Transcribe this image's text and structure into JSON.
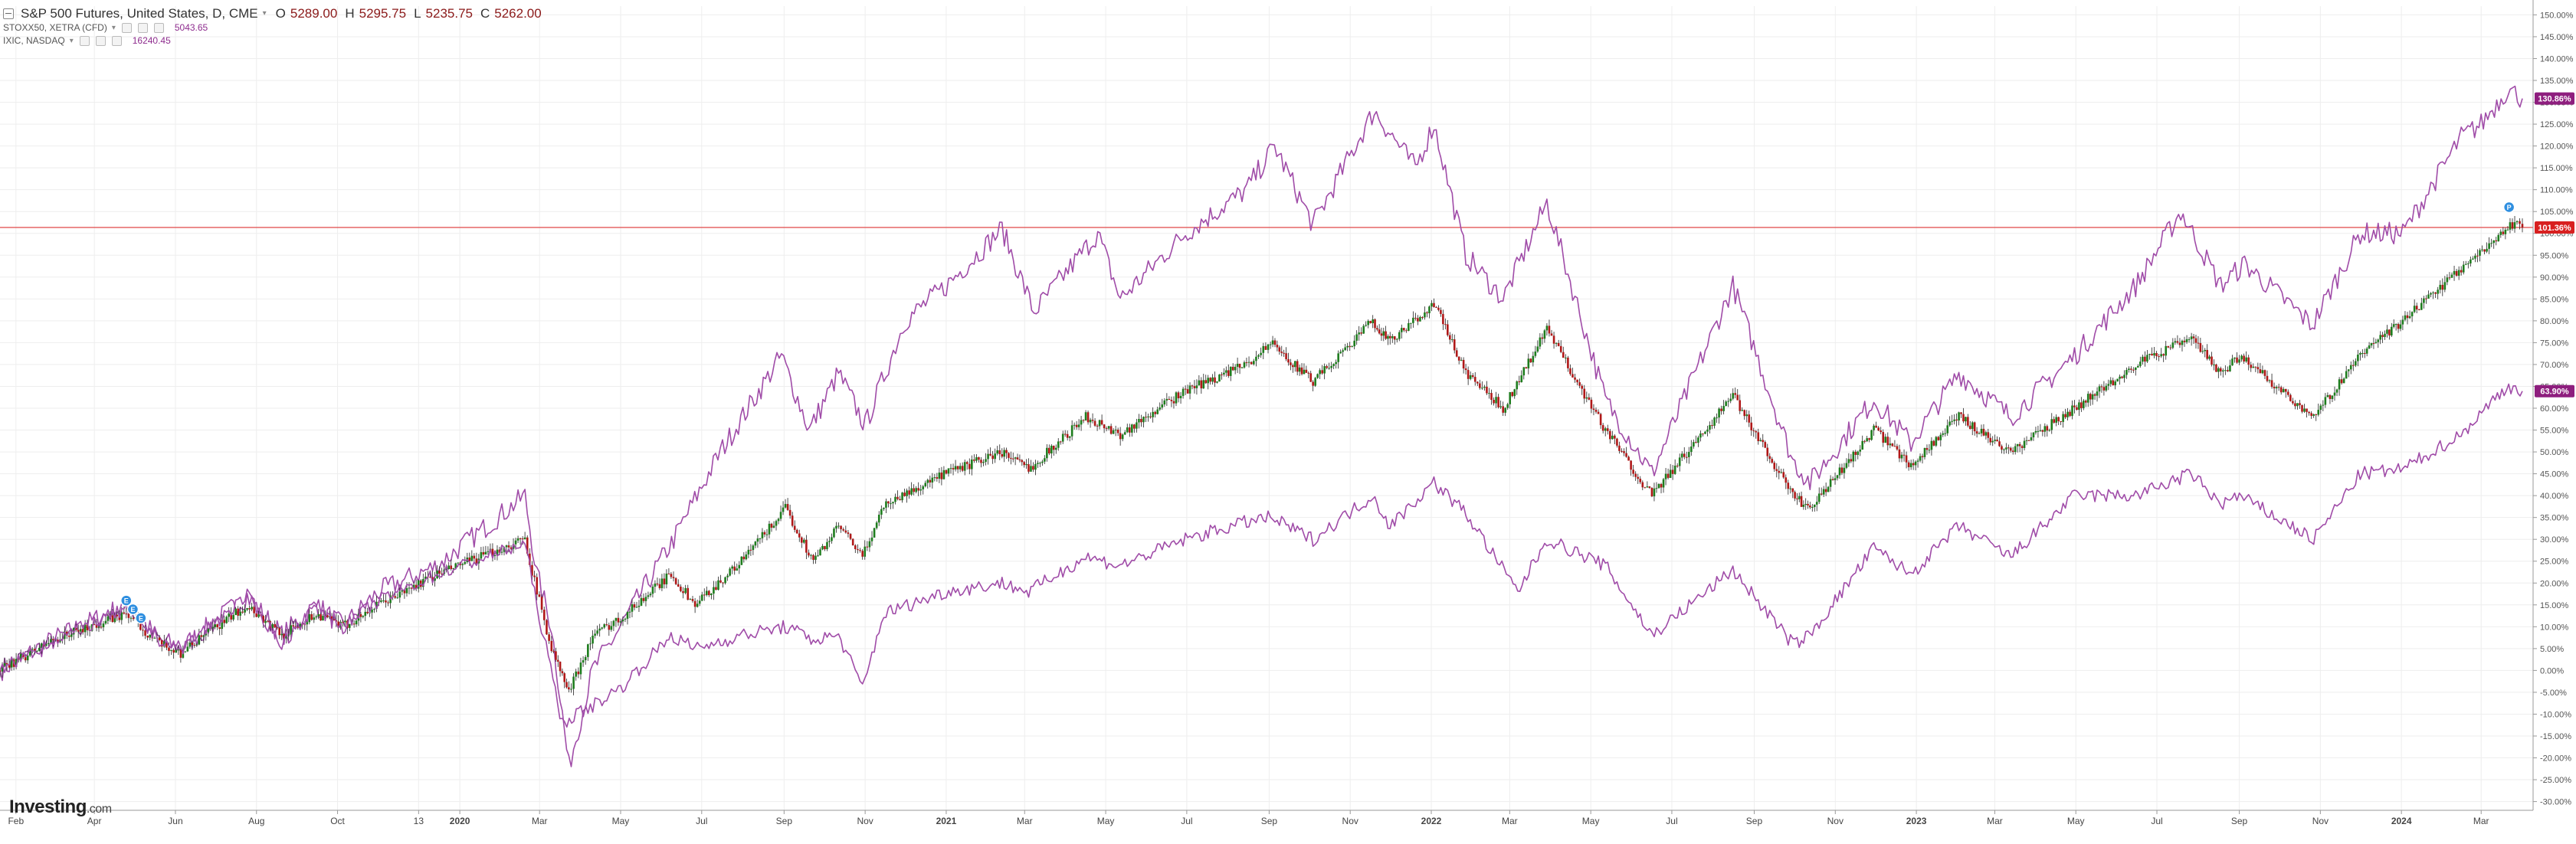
{
  "legend": {
    "main": {
      "title": "S&P 500 Futures, United States, D, CME",
      "open_label": "O",
      "open": "5289.00",
      "high_label": "H",
      "high": "5295.75",
      "low_label": "L",
      "low": "5235.75",
      "close_label": "C",
      "close": "5262.00"
    },
    "comparisons": [
      {
        "title": "STOXX50, XETRA (CFD)",
        "value": "5043.65"
      },
      {
        "title": "IXIC, NASDAQ",
        "value": "16240.45"
      }
    ]
  },
  "logo": {
    "brand": "Investing",
    "suffix": ".com"
  },
  "colors": {
    "candle_up": "#1e7d1e",
    "candle_down": "#b01818",
    "nasdaq_line": "#a04ca8",
    "stoxx_line": "#a04ca8",
    "reference_line": "#e04848",
    "badge_purple": "#8e1e7e",
    "badge_red": "#d82020",
    "grid": "#eeeeee"
  },
  "chart_data": {
    "type": "line",
    "title": "",
    "xlabel": "",
    "ylabel": "",
    "ylim": [
      -32,
      152
    ],
    "y_unit": "%",
    "grid": true,
    "x_ticks": [
      {
        "label": "Feb",
        "date": "2019-02-01",
        "bold": false
      },
      {
        "label": "Apr",
        "date": "2019-04-01",
        "bold": false
      },
      {
        "label": "Jun",
        "date": "2019-06-01",
        "bold": false
      },
      {
        "label": "Aug",
        "date": "2019-08-01",
        "bold": false
      },
      {
        "label": "Oct",
        "date": "2019-10-01",
        "bold": false
      },
      {
        "label": "13",
        "date": "2019-12-01",
        "bold": false
      },
      {
        "label": "2020",
        "date": "2020-01-01",
        "bold": true
      },
      {
        "label": "Mar",
        "date": "2020-03-01",
        "bold": false
      },
      {
        "label": "May",
        "date": "2020-05-01",
        "bold": false
      },
      {
        "label": "Jul",
        "date": "2020-07-01",
        "bold": false
      },
      {
        "label": "Sep",
        "date": "2020-09-01",
        "bold": false
      },
      {
        "label": "Nov",
        "date": "2020-11-01",
        "bold": false
      },
      {
        "label": "2021",
        "date": "2021-01-01",
        "bold": true
      },
      {
        "label": "Mar",
        "date": "2021-03-01",
        "bold": false
      },
      {
        "label": "May",
        "date": "2021-05-01",
        "bold": false
      },
      {
        "label": "Jul",
        "date": "2021-07-01",
        "bold": false
      },
      {
        "label": "Sep",
        "date": "2021-09-01",
        "bold": false
      },
      {
        "label": "Nov",
        "date": "2021-11-01",
        "bold": false
      },
      {
        "label": "2022",
        "date": "2022-01-01",
        "bold": true
      },
      {
        "label": "Mar",
        "date": "2022-03-01",
        "bold": false
      },
      {
        "label": "May",
        "date": "2022-05-01",
        "bold": false
      },
      {
        "label": "Jul",
        "date": "2022-07-01",
        "bold": false
      },
      {
        "label": "Sep",
        "date": "2022-09-01",
        "bold": false
      },
      {
        "label": "Nov",
        "date": "2022-11-01",
        "bold": false
      },
      {
        "label": "2023",
        "date": "2023-01-01",
        "bold": true
      },
      {
        "label": "Mar",
        "date": "2023-03-01",
        "bold": false
      },
      {
        "label": "May",
        "date": "2023-05-01",
        "bold": false
      },
      {
        "label": "Jul",
        "date": "2023-07-01",
        "bold": false
      },
      {
        "label": "Sep",
        "date": "2023-09-01",
        "bold": false
      },
      {
        "label": "Nov",
        "date": "2023-11-01",
        "bold": false
      },
      {
        "label": "2024",
        "date": "2024-01-01",
        "bold": true
      },
      {
        "label": "Mar",
        "date": "2024-03-01",
        "bold": false
      }
    ],
    "y_ticks": [
      "150.00%",
      "145.00%",
      "140.00%",
      "135.00%",
      "130.00%",
      "125.00%",
      "120.00%",
      "115.00%",
      "110.00%",
      "105.00%",
      "100.00%",
      "95.00%",
      "90.00%",
      "85.00%",
      "80.00%",
      "75.00%",
      "70.00%",
      "65.00%",
      "60.00%",
      "55.00%",
      "50.00%",
      "45.00%",
      "40.00%",
      "35.00%",
      "30.00%",
      "25.00%",
      "20.00%",
      "15.00%",
      "10.00%",
      "5.00%",
      "0.00%",
      "-5.00%",
      "-10.00%",
      "-15.00%",
      "-20.00%",
      "-25.00%",
      "-30.00%"
    ],
    "reference_line": {
      "value": 101.36,
      "label": "101.36%"
    },
    "series": [
      {
        "name": "IXIC, NASDAQ",
        "style": "line",
        "last_label": "130.86%",
        "points": [
          [
            "2019-01-20",
            0
          ],
          [
            "2019-03-01",
            7
          ],
          [
            "2019-04-25",
            15
          ],
          [
            "2019-05-20",
            7
          ],
          [
            "2019-06-05",
            5
          ],
          [
            "2019-07-25",
            17
          ],
          [
            "2019-08-20",
            8
          ],
          [
            "2019-09-15",
            15
          ],
          [
            "2019-10-05",
            10
          ],
          [
            "2019-11-01",
            18
          ],
          [
            "2019-12-15",
            24
          ],
          [
            "2020-02-19",
            40
          ],
          [
            "2020-02-28",
            22
          ],
          [
            "2020-03-10",
            10
          ],
          [
            "2020-03-23",
            -22
          ],
          [
            "2020-04-10",
            0
          ],
          [
            "2020-05-01",
            10
          ],
          [
            "2020-06-10",
            30
          ],
          [
            "2020-07-15",
            50
          ],
          [
            "2020-08-30",
            72
          ],
          [
            "2020-09-20",
            55
          ],
          [
            "2020-10-12",
            68
          ],
          [
            "2020-11-01",
            56
          ],
          [
            "2020-12-01",
            80
          ],
          [
            "2021-01-01",
            88
          ],
          [
            "2021-02-12",
            101
          ],
          [
            "2021-03-08",
            82
          ],
          [
            "2021-04-25",
            100
          ],
          [
            "2021-05-12",
            85
          ],
          [
            "2021-06-30",
            100
          ],
          [
            "2021-08-15",
            110
          ],
          [
            "2021-09-05",
            120
          ],
          [
            "2021-10-04",
            102
          ],
          [
            "2021-11-19",
            128
          ],
          [
            "2021-12-20",
            115
          ],
          [
            "2022-01-03",
            125
          ],
          [
            "2022-01-27",
            95
          ],
          [
            "2022-02-24",
            85
          ],
          [
            "2022-03-29",
            107
          ],
          [
            "2022-05-12",
            62
          ],
          [
            "2022-06-16",
            45
          ],
          [
            "2022-08-16",
            88
          ],
          [
            "2022-09-30",
            48
          ],
          [
            "2022-10-13",
            43
          ],
          [
            "2022-11-30",
            62
          ],
          [
            "2022-12-28",
            52
          ],
          [
            "2023-02-02",
            68
          ],
          [
            "2023-03-13",
            58
          ],
          [
            "2023-04-30",
            72
          ],
          [
            "2023-06-15",
            88
          ],
          [
            "2023-07-19",
            105
          ],
          [
            "2023-08-18",
            88
          ],
          [
            "2023-09-05",
            93
          ],
          [
            "2023-10-26",
            79
          ],
          [
            "2023-12-01",
            100
          ],
          [
            "2024-01-02",
            100
          ],
          [
            "2024-02-15",
            122
          ],
          [
            "2024-03-01",
            125
          ],
          [
            "2024-03-21",
            133
          ],
          [
            "2024-04-01",
            130.86
          ]
        ]
      },
      {
        "name": "S&P 500 Futures, United States, D, CME",
        "style": "candle",
        "last_label": "101.36%",
        "points": [
          [
            "2019-01-20",
            0
          ],
          [
            "2019-03-01",
            7
          ],
          [
            "2019-04-25",
            13
          ],
          [
            "2019-05-20",
            6
          ],
          [
            "2019-06-05",
            4
          ],
          [
            "2019-07-25",
            15
          ],
          [
            "2019-08-20",
            8
          ],
          [
            "2019-09-15",
            13
          ],
          [
            "2019-10-05",
            10
          ],
          [
            "2019-11-01",
            15
          ],
          [
            "2019-12-15",
            22
          ],
          [
            "2020-02-19",
            30
          ],
          [
            "2020-02-28",
            18
          ],
          [
            "2020-03-10",
            5
          ],
          [
            "2020-03-23",
            -5
          ],
          [
            "2020-04-10",
            8
          ],
          [
            "2020-05-01",
            12
          ],
          [
            "2020-06-08",
            22
          ],
          [
            "2020-06-26",
            15
          ],
          [
            "2020-07-31",
            25
          ],
          [
            "2020-09-02",
            37
          ],
          [
            "2020-09-23",
            25
          ],
          [
            "2020-10-12",
            33
          ],
          [
            "2020-10-30",
            26
          ],
          [
            "2020-11-15",
            38
          ],
          [
            "2021-01-01",
            45
          ],
          [
            "2021-02-12",
            50
          ],
          [
            "2021-03-04",
            46
          ],
          [
            "2021-04-16",
            58
          ],
          [
            "2021-05-12",
            54
          ],
          [
            "2021-06-30",
            64
          ],
          [
            "2021-08-15",
            70
          ],
          [
            "2021-09-02",
            75
          ],
          [
            "2021-10-04",
            66
          ],
          [
            "2021-11-18",
            80
          ],
          [
            "2021-12-01",
            75
          ],
          [
            "2022-01-03",
            84
          ],
          [
            "2022-01-27",
            68
          ],
          [
            "2022-02-24",
            60
          ],
          [
            "2022-03-29",
            78
          ],
          [
            "2022-05-12",
            55
          ],
          [
            "2022-06-16",
            40
          ],
          [
            "2022-08-16",
            63
          ],
          [
            "2022-09-30",
            40
          ],
          [
            "2022-10-13",
            37
          ],
          [
            "2022-11-30",
            55
          ],
          [
            "2022-12-28",
            47
          ],
          [
            "2023-02-02",
            58
          ],
          [
            "2023-03-13",
            50
          ],
          [
            "2023-04-30",
            60
          ],
          [
            "2023-06-15",
            70
          ],
          [
            "2023-07-27",
            76
          ],
          [
            "2023-08-18",
            68
          ],
          [
            "2023-09-01",
            72
          ],
          [
            "2023-10-27",
            58
          ],
          [
            "2023-12-01",
            72
          ],
          [
            "2024-01-02",
            80
          ],
          [
            "2024-02-15",
            92
          ],
          [
            "2024-03-28",
            103
          ],
          [
            "2024-04-01",
            101.36
          ]
        ]
      },
      {
        "name": "STOXX50, XETRA (CFD)",
        "style": "line",
        "last_label": "63.90%",
        "points": [
          [
            "2019-01-20",
            0
          ],
          [
            "2019-03-01",
            7
          ],
          [
            "2019-04-25",
            14
          ],
          [
            "2019-05-20",
            7
          ],
          [
            "2019-06-05",
            5
          ],
          [
            "2019-07-25",
            17
          ],
          [
            "2019-08-20",
            6
          ],
          [
            "2019-09-15",
            15
          ],
          [
            "2019-10-05",
            10
          ],
          [
            "2019-11-01",
            16
          ],
          [
            "2019-12-15",
            22
          ],
          [
            "2020-02-19",
            29
          ],
          [
            "2020-02-28",
            15
          ],
          [
            "2020-03-18",
            -12
          ],
          [
            "2020-04-10",
            -8
          ],
          [
            "2020-05-01",
            -4
          ],
          [
            "2020-06-08",
            8
          ],
          [
            "2020-06-26",
            5
          ],
          [
            "2020-07-31",
            8
          ],
          [
            "2020-09-02",
            10
          ],
          [
            "2020-09-23",
            7
          ],
          [
            "2020-10-12",
            8
          ],
          [
            "2020-10-30",
            -4
          ],
          [
            "2020-11-15",
            13
          ],
          [
            "2021-01-01",
            18
          ],
          [
            "2021-02-12",
            20
          ],
          [
            "2021-03-04",
            18
          ],
          [
            "2021-04-16",
            26
          ],
          [
            "2021-05-12",
            24
          ],
          [
            "2021-06-30",
            30
          ],
          [
            "2021-08-15",
            34
          ],
          [
            "2021-09-02",
            35
          ],
          [
            "2021-10-04",
            30
          ],
          [
            "2021-11-18",
            40
          ],
          [
            "2021-12-01",
            33
          ],
          [
            "2022-01-03",
            43
          ],
          [
            "2022-01-27",
            36
          ],
          [
            "2022-03-07",
            18
          ],
          [
            "2022-03-29",
            30
          ],
          [
            "2022-05-12",
            24
          ],
          [
            "2022-06-16",
            8
          ],
          [
            "2022-08-16",
            23
          ],
          [
            "2022-09-30",
            6
          ],
          [
            "2022-10-13",
            8
          ],
          [
            "2022-11-30",
            28
          ],
          [
            "2022-12-28",
            22
          ],
          [
            "2023-02-02",
            33
          ],
          [
            "2023-03-13",
            26
          ],
          [
            "2023-04-30",
            40
          ],
          [
            "2023-06-15",
            40
          ],
          [
            "2023-07-27",
            45
          ],
          [
            "2023-08-18",
            38
          ],
          [
            "2023-09-01",
            40
          ],
          [
            "2023-10-27",
            30
          ],
          [
            "2023-12-01",
            45
          ],
          [
            "2024-01-02",
            46
          ],
          [
            "2024-02-15",
            54
          ],
          [
            "2024-03-20",
            65
          ],
          [
            "2024-04-01",
            63.9
          ]
        ]
      }
    ],
    "event_markers": [
      {
        "date": "2019-04-25",
        "value": 16,
        "label": "E"
      },
      {
        "date": "2019-04-30",
        "value": 14,
        "label": "E"
      },
      {
        "date": "2019-05-06",
        "value": 12,
        "label": "E"
      },
      {
        "date": "2024-03-22",
        "value": 106,
        "label": "P"
      }
    ]
  }
}
